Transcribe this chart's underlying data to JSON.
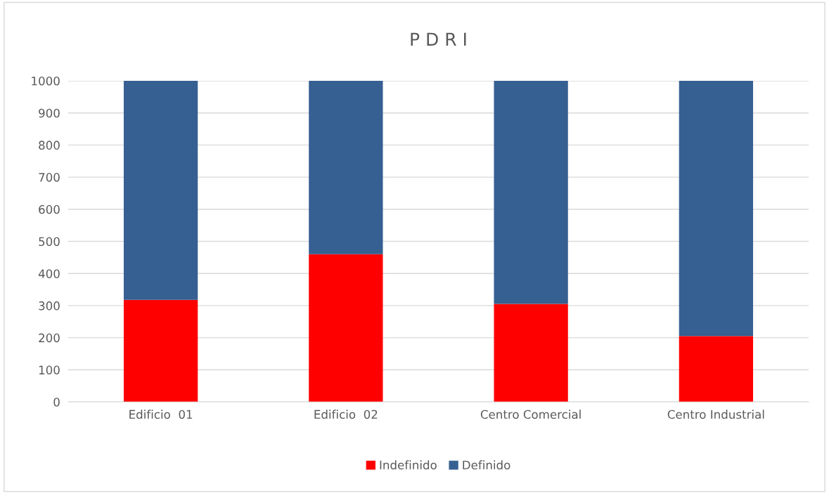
{
  "chart_data": {
    "type": "bar",
    "title": "P D R I",
    "categories": [
      "Edificio  01",
      "Edificio  02",
      "Centro Comercial",
      "Centro Industrial"
    ],
    "stacked": true,
    "series": [
      {
        "name": "Indefinido",
        "color": "#ff0000",
        "values": [
          318,
          460,
          305,
          205
        ]
      },
      {
        "name": "Definido",
        "color": "#366092",
        "values": [
          682,
          540,
          695,
          795
        ]
      }
    ],
    "ylim": [
      0,
      1000
    ],
    "yticks": [
      0,
      100,
      200,
      300,
      400,
      500,
      600,
      700,
      800,
      900,
      1000
    ],
    "grid": "y",
    "legend": "bottom"
  }
}
